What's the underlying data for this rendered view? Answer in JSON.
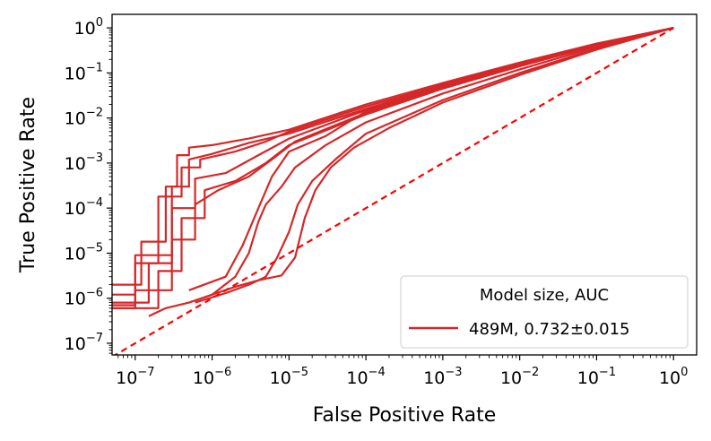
{
  "chart_data": {
    "type": "line",
    "xlabel": "False Positive Rate",
    "ylabel": "True Positive Rate",
    "xscale": "log",
    "yscale": "log",
    "xlim": [
      5e-08,
      2.0
    ],
    "ylim": [
      5.5e-08,
      2.0
    ],
    "x_ticks": [
      {
        "base": "10",
        "exp": "−7",
        "value": 1e-07
      },
      {
        "base": "10",
        "exp": "−6",
        "value": 1e-06
      },
      {
        "base": "10",
        "exp": "−5",
        "value": 1e-05
      },
      {
        "base": "10",
        "exp": "−4",
        "value": 0.0001
      },
      {
        "base": "10",
        "exp": "−3",
        "value": 0.001
      },
      {
        "base": "10",
        "exp": "−2",
        "value": 0.01
      },
      {
        "base": "10",
        "exp": "−1",
        "value": 0.1
      },
      {
        "base": "10",
        "exp": "0",
        "value": 1
      }
    ],
    "y_ticks": [
      {
        "base": "10",
        "exp": "0",
        "value": 1
      },
      {
        "base": "10",
        "exp": "−1",
        "value": 0.1
      },
      {
        "base": "10",
        "exp": "−2",
        "value": 0.01
      },
      {
        "base": "10",
        "exp": "−3",
        "value": 0.001
      },
      {
        "base": "10",
        "exp": "−4",
        "value": 0.0001
      },
      {
        "base": "10",
        "exp": "−5",
        "value": 1e-05
      },
      {
        "base": "10",
        "exp": "−6",
        "value": 1e-06
      },
      {
        "base": "10",
        "exp": "−7",
        "value": 1e-07
      }
    ],
    "legend": {
      "title": "Model size, AUC",
      "placement": "lower-right",
      "entries": [
        {
          "label": "489M, 0.732±0.015",
          "color": "#d62728"
        }
      ]
    },
    "series_color": "#d62728",
    "reference_line": {
      "style": "dashed",
      "color": "#ff0000",
      "points": [
        [
          5e-08,
          5e-08
        ],
        [
          1,
          1
        ]
      ]
    },
    "series": [
      {
        "points": [
          [
            5e-08,
            2e-06
          ],
          [
            1.2e-07,
            2e-06
          ],
          [
            1.2e-07,
            1.8e-05
          ],
          [
            2.5e-07,
            1.8e-05
          ],
          [
            2.5e-07,
            0.0003
          ],
          [
            3.5e-07,
            0.0003
          ],
          [
            3.5e-07,
            0.0015
          ],
          [
            5e-07,
            0.0015
          ],
          [
            5e-07,
            0.0022
          ],
          [
            1e-06,
            0.0025
          ],
          [
            3e-06,
            0.0035
          ],
          [
            1e-05,
            0.0055
          ],
          [
            0.0001,
            0.02
          ],
          [
            0.001,
            0.06
          ],
          [
            0.01,
            0.17
          ],
          [
            0.1,
            0.45
          ],
          [
            1,
            1
          ]
        ]
      },
      {
        "points": [
          [
            5e-08,
            1.2e-06
          ],
          [
            1e-07,
            1.2e-06
          ],
          [
            1e-07,
            6e-06
          ],
          [
            2e-07,
            6e-06
          ],
          [
            2e-07,
            0.00018
          ],
          [
            4e-07,
            0.00018
          ],
          [
            4e-07,
            0.0008
          ],
          [
            7e-07,
            0.0008
          ],
          [
            7e-07,
            0.0012
          ],
          [
            2e-06,
            0.0018
          ],
          [
            5e-06,
            0.003
          ],
          [
            1e-05,
            0.005
          ],
          [
            0.0001,
            0.018
          ],
          [
            0.001,
            0.055
          ],
          [
            0.01,
            0.16
          ],
          [
            0.1,
            0.43
          ],
          [
            1,
            1
          ]
        ]
      },
      {
        "points": [
          [
            5e-08,
            8e-07
          ],
          [
            1.5e-07,
            8e-07
          ],
          [
            1.5e-07,
            6e-06
          ],
          [
            3e-07,
            6e-06
          ],
          [
            3e-07,
            0.0001
          ],
          [
            6e-07,
            0.0001
          ],
          [
            6e-07,
            0.00045
          ],
          [
            1.5e-06,
            0.0006
          ],
          [
            4e-06,
            0.0015
          ],
          [
            1e-05,
            0.0035
          ],
          [
            0.0001,
            0.015
          ],
          [
            0.001,
            0.05
          ],
          [
            0.01,
            0.15
          ],
          [
            0.1,
            0.42
          ],
          [
            1,
            1
          ]
        ]
      },
      {
        "points": [
          [
            5e-08,
            6e-07
          ],
          [
            2e-07,
            6e-07
          ],
          [
            2e-07,
            4e-06
          ],
          [
            4e-07,
            4e-06
          ],
          [
            4e-07,
            6e-05
          ],
          [
            8e-07,
            6e-05
          ],
          [
            8e-07,
            0.00025
          ],
          [
            2e-06,
            0.0004
          ],
          [
            5e-06,
            0.001
          ],
          [
            1e-05,
            0.0025
          ],
          [
            0.0001,
            0.012
          ],
          [
            0.001,
            0.045
          ],
          [
            0.01,
            0.14
          ],
          [
            0.1,
            0.41
          ],
          [
            1,
            1
          ]
        ]
      },
      {
        "points": [
          [
            5e-08,
            7e-07
          ],
          [
            1e-07,
            7e-07
          ],
          [
            1e-07,
            1.5e-06
          ],
          [
            3e-07,
            1.5e-06
          ],
          [
            3e-07,
            2e-05
          ],
          [
            6e-07,
            2e-05
          ],
          [
            6e-07,
            0.00012
          ],
          [
            1.2e-06,
            0.00025
          ],
          [
            3e-06,
            0.0005
          ],
          [
            6e-06,
            0.0012
          ],
          [
            1.2e-05,
            0.003
          ],
          [
            0.0001,
            0.013
          ],
          [
            0.001,
            0.048
          ],
          [
            0.01,
            0.15
          ],
          [
            0.1,
            0.42
          ],
          [
            1,
            1
          ]
        ]
      },
      {
        "points": [
          [
            1.5e-07,
            4e-07
          ],
          [
            2.5e-07,
            6e-07
          ],
          [
            5e-07,
            8e-07
          ],
          [
            1e-06,
            1.2e-06
          ],
          [
            2e-06,
            3e-06
          ],
          [
            3e-06,
            1e-05
          ],
          [
            4e-06,
            5e-05
          ],
          [
            5e-06,
            0.00012
          ],
          [
            8e-06,
            0.0003
          ],
          [
            1.2e-05,
            0.0008
          ],
          [
            3e-05,
            0.0025
          ],
          [
            0.0001,
            0.008
          ],
          [
            0.001,
            0.035
          ],
          [
            0.01,
            0.12
          ],
          [
            0.1,
            0.38
          ],
          [
            1,
            1
          ]
        ]
      },
      {
        "points": [
          [
            6e-07,
            8e-07
          ],
          [
            1.5e-06,
            1.3e-06
          ],
          [
            3e-06,
            2e-06
          ],
          [
            5e-06,
            3e-06
          ],
          [
            7e-06,
            8e-06
          ],
          [
            1e-05,
            3e-05
          ],
          [
            1.3e-05,
            0.00012
          ],
          [
            2e-05,
            0.0004
          ],
          [
            4e-05,
            0.0012
          ],
          [
            0.0001,
            0.0045
          ],
          [
            0.001,
            0.025
          ],
          [
            0.01,
            0.1
          ],
          [
            0.1,
            0.35
          ],
          [
            1,
            1
          ]
        ]
      },
      {
        "points": [
          [
            1e-06,
            1.2e-06
          ],
          [
            2e-06,
            1.8e-06
          ],
          [
            4e-06,
            2.5e-06
          ],
          [
            8e-06,
            3.2e-06
          ],
          [
            1.2e-05,
            8e-06
          ],
          [
            1.6e-05,
            6e-05
          ],
          [
            2.2e-05,
            0.00025
          ],
          [
            3.5e-05,
            0.0008
          ],
          [
            7e-05,
            0.0022
          ],
          [
            0.0002,
            0.006
          ],
          [
            0.001,
            0.022
          ],
          [
            0.01,
            0.09
          ],
          [
            0.1,
            0.33
          ],
          [
            1,
            1
          ]
        ]
      },
      {
        "points": [
          [
            5e-08,
            6e-07
          ],
          [
            1e-07,
            6e-07
          ],
          [
            1e-07,
            9e-06
          ],
          [
            3e-07,
            9e-06
          ],
          [
            3e-07,
            0.0003
          ],
          [
            5e-07,
            0.0003
          ],
          [
            5e-07,
            0.0012
          ],
          [
            1e-06,
            0.0016
          ],
          [
            3e-06,
            0.0028
          ],
          [
            1e-05,
            0.0045
          ],
          [
            0.0001,
            0.016
          ],
          [
            0.001,
            0.052
          ],
          [
            0.01,
            0.16
          ],
          [
            0.1,
            0.44
          ],
          [
            1,
            1
          ]
        ]
      },
      {
        "points": [
          [
            5e-07,
            1.5e-06
          ],
          [
            1.5e-06,
            3e-06
          ],
          [
            2.5e-06,
            1.5e-05
          ],
          [
            4e-06,
            0.0001
          ],
          [
            6e-06,
            0.0005
          ],
          [
            1e-05,
            0.0018
          ],
          [
            3e-05,
            0.004
          ],
          [
            0.0001,
            0.014
          ],
          [
            0.001,
            0.046
          ],
          [
            0.01,
            0.15
          ],
          [
            0.1,
            0.42
          ],
          [
            1,
            1
          ]
        ]
      }
    ]
  }
}
